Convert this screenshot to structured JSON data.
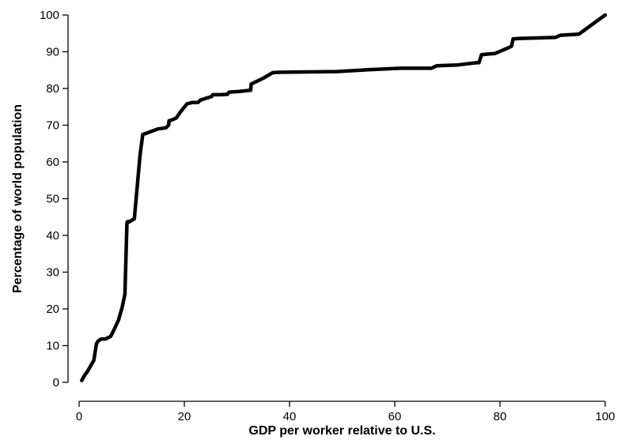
{
  "chart_data": {
    "type": "line",
    "title": "",
    "xlabel": "GDP per worker relative to U.S.",
    "ylabel": "Percentage of world population",
    "xlim": [
      0,
      100
    ],
    "ylim": [
      0,
      100
    ],
    "xticks": [
      0,
      20,
      40,
      60,
      80,
      100
    ],
    "yticks": [
      0,
      10,
      20,
      30,
      40,
      50,
      60,
      70,
      80,
      90,
      100
    ],
    "grid": false,
    "series": [
      {
        "x": [
          0.5,
          1.0,
          1.6,
          2.2,
          2.8,
          3.3,
          3.6,
          4.2,
          5.0,
          6.0,
          6.8,
          7.5,
          8.2,
          8.7,
          9.1,
          9.3,
          9.4,
          10.5,
          11.6,
          12.1,
          12.8,
          13.5,
          15.0,
          16.5,
          17.0,
          17.1,
          17.6,
          18.5,
          19.2,
          20.5,
          21.5,
          22.6,
          23.0,
          24.0,
          25.2,
          25.4,
          27.0,
          28.2,
          28.5,
          30.5,
          32.6,
          32.7,
          35.0,
          36.8,
          38.0,
          49.0,
          55.0,
          61.0,
          67.0,
          68.0,
          72.0,
          75.5,
          76.0,
          76.5,
          78.0,
          79.0,
          81.5,
          82.2,
          82.5,
          83.5,
          86.0,
          90.5,
          91.5,
          95.0,
          100.0
        ],
        "y": [
          0.5,
          1.8,
          3.0,
          4.5,
          6.0,
          10.5,
          11.2,
          11.8,
          11.8,
          12.5,
          14.8,
          17.0,
          20.5,
          24.0,
          43.5,
          43.8,
          43.6,
          44.5,
          62.0,
          67.5,
          67.8,
          68.2,
          69.0,
          69.3,
          70.0,
          71.2,
          71.4,
          72.0,
          73.5,
          75.8,
          76.2,
          76.2,
          76.8,
          77.3,
          77.8,
          78.3,
          78.3,
          78.4,
          79.0,
          79.2,
          79.5,
          81.2,
          82.8,
          84.3,
          84.4,
          84.6,
          85.1,
          85.5,
          85.5,
          86.2,
          86.4,
          87.0,
          87.0,
          89.2,
          89.4,
          89.5,
          91.0,
          91.5,
          93.5,
          93.6,
          93.7,
          93.9,
          94.5,
          94.8,
          100.0
        ]
      }
    ]
  }
}
